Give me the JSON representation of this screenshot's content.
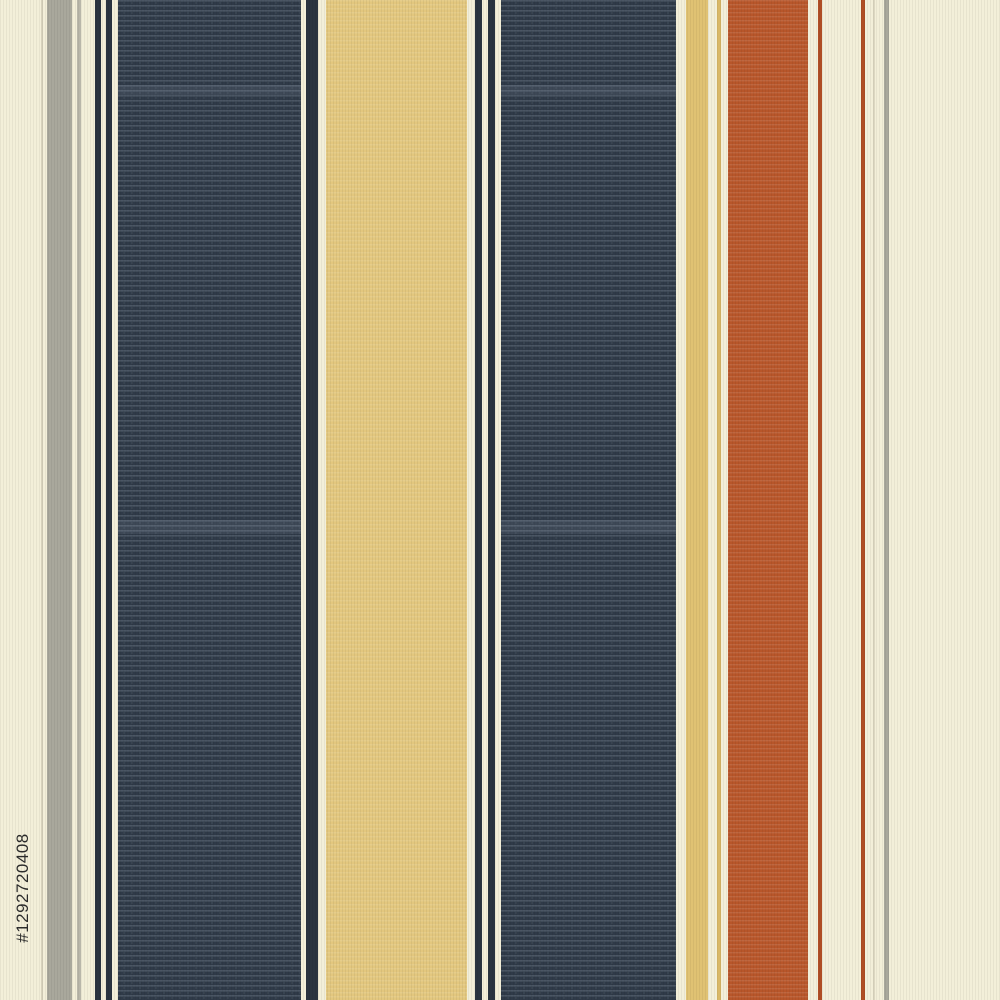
{
  "image": {
    "description_type": "woven-fabric-stripe-pattern",
    "watermark_text": "#1292720408",
    "palette": {
      "cream": "#f3efd9",
      "navy": "#2f3a48",
      "navy_dark": "#222a35",
      "mustard": "#e3c77e",
      "rust": "#b8562a",
      "gray": "#a9a89c",
      "white_line": "#f6f3e4"
    }
  }
}
